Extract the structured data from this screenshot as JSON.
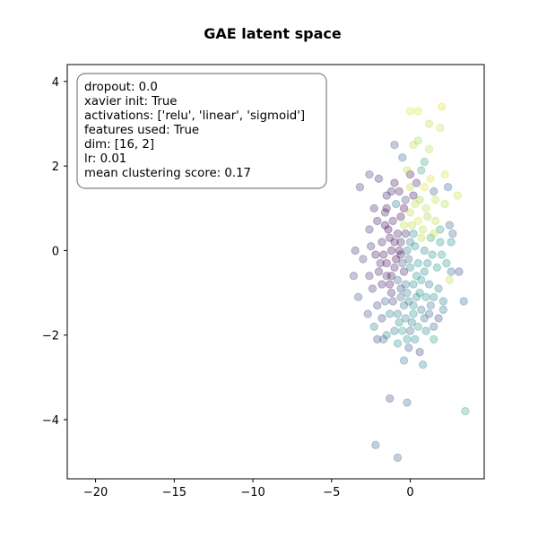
{
  "chart_data": {
    "type": "scatter",
    "title": "GAE latent space",
    "xlabel": "",
    "ylabel": "",
    "xlim": [
      -21.8,
      4.7
    ],
    "ylim": [
      -5.4,
      4.4
    ],
    "xticks": [
      -20,
      -15,
      -10,
      -5,
      0
    ],
    "yticks": [
      -4,
      -2,
      0,
      2,
      4
    ],
    "xtick_labels": [
      "−20",
      "−15",
      "−10",
      "−5",
      "0"
    ],
    "ytick_labels": [
      "−4",
      "−2",
      "0",
      "2",
      "4"
    ],
    "grid": false,
    "colormap": "viridis",
    "marker_alpha": 0.3,
    "annotation_box": {
      "lines": [
        "dropout: 0.0",
        "xavier init: True",
        "activations: ['relu', 'linear', 'sigmoid']",
        "features used: True",
        "dim: [16, 2]",
        "lr: 0.01",
        "mean clustering score: 0.17"
      ],
      "placement": "top-left"
    },
    "points": [
      {
        "x": 0.0,
        "y": 3.3,
        "c": 0.95
      },
      {
        "x": 0.5,
        "y": 3.3,
        "c": 0.95
      },
      {
        "x": 2.0,
        "y": 3.4,
        "c": 0.95
      },
      {
        "x": 1.2,
        "y": 3.0,
        "c": 0.9
      },
      {
        "x": 1.9,
        "y": 2.9,
        "c": 0.92
      },
      {
        "x": 0.2,
        "y": 2.5,
        "c": 0.9
      },
      {
        "x": 0.5,
        "y": 2.6,
        "c": 0.85
      },
      {
        "x": 0.9,
        "y": 2.1,
        "c": 0.6
      },
      {
        "x": 2.2,
        "y": 1.8,
        "c": 0.95
      },
      {
        "x": -0.5,
        "y": 2.2,
        "c": 0.3
      },
      {
        "x": -1.0,
        "y": 2.5,
        "c": 0.25
      },
      {
        "x": 1.2,
        "y": 2.4,
        "c": 0.9
      },
      {
        "x": -2.6,
        "y": 1.8,
        "c": 0.2
      },
      {
        "x": -3.2,
        "y": 1.5,
        "c": 0.15
      },
      {
        "x": -2.0,
        "y": 1.7,
        "c": 0.1
      },
      {
        "x": -1.5,
        "y": 1.3,
        "c": 0.1
      },
      {
        "x": -1.0,
        "y": 1.6,
        "c": 0.05
      },
      {
        "x": 0.0,
        "y": 1.8,
        "c": 0.05
      },
      {
        "x": 0.4,
        "y": 1.6,
        "c": 0.1
      },
      {
        "x": 0.9,
        "y": 1.5,
        "c": 0.95
      },
      {
        "x": 1.5,
        "y": 1.4,
        "c": 0.3
      },
      {
        "x": 2.4,
        "y": 1.5,
        "c": 0.3
      },
      {
        "x": 3.0,
        "y": 1.3,
        "c": 0.92
      },
      {
        "x": 2.2,
        "y": 1.1,
        "c": 0.9
      },
      {
        "x": 1.6,
        "y": 1.2,
        "c": 0.9
      },
      {
        "x": 0.6,
        "y": 1.2,
        "c": 0.85
      },
      {
        "x": -0.3,
        "y": 1.2,
        "c": 0.2
      },
      {
        "x": -0.9,
        "y": 1.1,
        "c": 0.4
      },
      {
        "x": -1.5,
        "y": 1.0,
        "c": 0.05
      },
      {
        "x": -2.3,
        "y": 1.0,
        "c": 0.1
      },
      {
        "x": -2.6,
        "y": 0.5,
        "c": 0.15
      },
      {
        "x": -2.1,
        "y": 0.7,
        "c": 0.05
      },
      {
        "x": -1.6,
        "y": 0.6,
        "c": 0.02
      },
      {
        "x": -1.1,
        "y": 0.7,
        "c": 0.1
      },
      {
        "x": -0.6,
        "y": 0.8,
        "c": 0.0
      },
      {
        "x": 0.0,
        "y": 0.9,
        "c": 0.9
      },
      {
        "x": 0.5,
        "y": 0.7,
        "c": 0.95
      },
      {
        "x": 1.1,
        "y": 0.8,
        "c": 0.85
      },
      {
        "x": 1.6,
        "y": 0.7,
        "c": 0.9
      },
      {
        "x": 2.5,
        "y": 0.6,
        "c": 0.3
      },
      {
        "x": 2.7,
        "y": 0.4,
        "c": 0.35
      },
      {
        "x": 2.6,
        "y": 0.2,
        "c": 0.5
      },
      {
        "x": 1.9,
        "y": 0.2,
        "c": 0.5
      },
      {
        "x": 1.3,
        "y": 0.3,
        "c": 0.6
      },
      {
        "x": 0.7,
        "y": 0.3,
        "c": 0.9
      },
      {
        "x": 0.2,
        "y": 0.4,
        "c": 0.45
      },
      {
        "x": -0.3,
        "y": 0.4,
        "c": 0.1
      },
      {
        "x": -0.8,
        "y": 0.4,
        "c": 0.1
      },
      {
        "x": -1.3,
        "y": 0.3,
        "c": 0.05
      },
      {
        "x": -1.8,
        "y": 0.2,
        "c": 0.1
      },
      {
        "x": -2.5,
        "y": 0.1,
        "c": 0.15
      },
      {
        "x": -3.5,
        "y": 0.0,
        "c": 0.15
      },
      {
        "x": -3.0,
        "y": -0.2,
        "c": 0.2
      },
      {
        "x": -2.2,
        "y": -0.1,
        "c": 0.05
      },
      {
        "x": -1.7,
        "y": -0.1,
        "c": 0.05
      },
      {
        "x": -1.2,
        "y": 0.0,
        "c": 0.02
      },
      {
        "x": -0.7,
        "y": 0.0,
        "c": 0.05
      },
      {
        "x": -0.2,
        "y": 0.0,
        "c": 0.4
      },
      {
        "x": 0.3,
        "y": 0.1,
        "c": 0.5
      },
      {
        "x": 0.9,
        "y": 0.0,
        "c": 0.45
      },
      {
        "x": 1.4,
        "y": -0.1,
        "c": 0.5
      },
      {
        "x": 2.0,
        "y": -0.1,
        "c": 0.55
      },
      {
        "x": 2.6,
        "y": -0.5,
        "c": 0.35
      },
      {
        "x": 3.1,
        "y": -0.5,
        "c": 0.2
      },
      {
        "x": 1.7,
        "y": -0.4,
        "c": 0.5
      },
      {
        "x": 1.1,
        "y": -0.3,
        "c": 0.45
      },
      {
        "x": 0.5,
        "y": -0.3,
        "c": 0.5
      },
      {
        "x": 0.0,
        "y": -0.4,
        "c": 0.45
      },
      {
        "x": -0.5,
        "y": -0.3,
        "c": 0.25
      },
      {
        "x": -1.0,
        "y": -0.4,
        "c": 0.1
      },
      {
        "x": -1.5,
        "y": -0.3,
        "c": 0.05
      },
      {
        "x": -2.0,
        "y": -0.5,
        "c": 0.1
      },
      {
        "x": -2.6,
        "y": -0.6,
        "c": 0.15
      },
      {
        "x": -3.6,
        "y": -0.6,
        "c": 0.2
      },
      {
        "x": -3.3,
        "y": -1.1,
        "c": 0.25
      },
      {
        "x": -2.4,
        "y": -0.9,
        "c": 0.15
      },
      {
        "x": -1.8,
        "y": -0.8,
        "c": 0.1
      },
      {
        "x": -1.3,
        "y": -0.8,
        "c": 0.05
      },
      {
        "x": -0.8,
        "y": -0.7,
        "c": 0.3
      },
      {
        "x": -0.3,
        "y": -0.8,
        "c": 0.4
      },
      {
        "x": 0.2,
        "y": -0.8,
        "c": 0.45
      },
      {
        "x": 0.7,
        "y": -0.7,
        "c": 0.5
      },
      {
        "x": 1.2,
        "y": -0.8,
        "c": 0.4
      },
      {
        "x": 1.8,
        "y": -0.9,
        "c": 0.45
      },
      {
        "x": 2.5,
        "y": -0.7,
        "c": 0.9
      },
      {
        "x": 2.1,
        "y": -1.2,
        "c": 0.4
      },
      {
        "x": 1.5,
        "y": -1.1,
        "c": 0.45
      },
      {
        "x": 1.0,
        "y": -1.1,
        "c": 0.5
      },
      {
        "x": 0.4,
        "y": -1.1,
        "c": 0.45
      },
      {
        "x": -0.1,
        "y": -1.2,
        "c": 0.4
      },
      {
        "x": -0.6,
        "y": -1.1,
        "c": 0.35
      },
      {
        "x": -1.1,
        "y": -1.2,
        "c": 0.2
      },
      {
        "x": -1.6,
        "y": -1.2,
        "c": 0.3
      },
      {
        "x": -2.1,
        "y": -1.3,
        "c": 0.2
      },
      {
        "x": -2.7,
        "y": -1.5,
        "c": 0.25
      },
      {
        "x": -2.3,
        "y": -1.8,
        "c": 0.45
      },
      {
        "x": -1.8,
        "y": -1.6,
        "c": 0.2
      },
      {
        "x": -1.3,
        "y": -1.5,
        "c": 0.45
      },
      {
        "x": -0.8,
        "y": -1.5,
        "c": 0.4
      },
      {
        "x": -0.3,
        "y": -1.6,
        "c": 0.45
      },
      {
        "x": 0.2,
        "y": -1.5,
        "c": 0.5
      },
      {
        "x": 0.7,
        "y": -1.4,
        "c": 0.4
      },
      {
        "x": 1.2,
        "y": -1.5,
        "c": 0.3
      },
      {
        "x": 1.8,
        "y": -1.6,
        "c": 0.2
      },
      {
        "x": 2.1,
        "y": -1.4,
        "c": 0.4
      },
      {
        "x": 3.4,
        "y": -1.2,
        "c": 0.35
      },
      {
        "x": 1.5,
        "y": -1.8,
        "c": 0.3
      },
      {
        "x": 1.0,
        "y": -1.9,
        "c": 0.45
      },
      {
        "x": 0.5,
        "y": -1.8,
        "c": 0.55
      },
      {
        "x": 0.0,
        "y": -1.9,
        "c": 0.3
      },
      {
        "x": -0.5,
        "y": -1.9,
        "c": 0.55
      },
      {
        "x": -1.0,
        "y": -1.9,
        "c": 0.4
      },
      {
        "x": -1.5,
        "y": -2.0,
        "c": 0.45
      },
      {
        "x": -2.1,
        "y": -2.1,
        "c": 0.2
      },
      {
        "x": -1.7,
        "y": -2.1,
        "c": 0.35
      },
      {
        "x": -0.8,
        "y": -2.2,
        "c": 0.5
      },
      {
        "x": -0.2,
        "y": -2.1,
        "c": 0.5
      },
      {
        "x": 0.3,
        "y": -2.1,
        "c": 0.45
      },
      {
        "x": 1.5,
        "y": -2.1,
        "c": 0.55
      },
      {
        "x": -0.1,
        "y": -2.3,
        "c": 0.25
      },
      {
        "x": 0.6,
        "y": -2.4,
        "c": 0.2
      },
      {
        "x": -0.4,
        "y": -2.6,
        "c": 0.4
      },
      {
        "x": 0.8,
        "y": -2.7,
        "c": 0.45
      },
      {
        "x": -1.3,
        "y": -3.5,
        "c": 0.2
      },
      {
        "x": -0.2,
        "y": -3.6,
        "c": 0.35
      },
      {
        "x": 3.5,
        "y": -3.8,
        "c": 0.6
      },
      {
        "x": -2.2,
        "y": -4.6,
        "c": 0.3
      },
      {
        "x": -0.8,
        "y": -4.9,
        "c": 0.3
      },
      {
        "x": 0.0,
        "y": 1.5,
        "c": 0.9
      },
      {
        "x": 0.3,
        "y": 1.1,
        "c": 0.9
      },
      {
        "x": -0.4,
        "y": 0.6,
        "c": 0.9
      },
      {
        "x": 0.8,
        "y": 0.5,
        "c": 0.9
      },
      {
        "x": -0.2,
        "y": 1.9,
        "c": 0.9
      },
      {
        "x": 0.7,
        "y": 1.9,
        "c": 0.6
      },
      {
        "x": 1.0,
        "y": 1.0,
        "c": 0.9
      },
      {
        "x": -0.6,
        "y": -0.1,
        "c": 0.05
      },
      {
        "x": -0.9,
        "y": -0.2,
        "c": 0.0
      },
      {
        "x": -1.4,
        "y": 0.5,
        "c": 0.0
      },
      {
        "x": -1.0,
        "y": 0.2,
        "c": 0.05
      },
      {
        "x": -0.6,
        "y": 0.2,
        "c": 0.1
      },
      {
        "x": -0.1,
        "y": -0.2,
        "c": 0.35
      },
      {
        "x": 0.4,
        "y": -0.6,
        "c": 0.5
      },
      {
        "x": 0.9,
        "y": -0.5,
        "c": 0.45
      },
      {
        "x": -0.4,
        "y": -0.5,
        "c": 0.1
      },
      {
        "x": -1.2,
        "y": -0.6,
        "c": 0.05
      },
      {
        "x": -0.6,
        "y": -0.9,
        "c": 0.2
      },
      {
        "x": -0.2,
        "y": -1.0,
        "c": 0.45
      },
      {
        "x": 0.6,
        "y": -1.0,
        "c": 0.5
      },
      {
        "x": 1.3,
        "y": -1.3,
        "c": 0.4
      },
      {
        "x": -0.4,
        "y": -1.3,
        "c": 0.4
      },
      {
        "x": 0.2,
        "y": -1.3,
        "c": 0.5
      },
      {
        "x": -1.2,
        "y": -1.0,
        "c": 0.1
      },
      {
        "x": -1.9,
        "y": -0.3,
        "c": 0.1
      },
      {
        "x": -1.6,
        "y": 0.9,
        "c": 0.1
      },
      {
        "x": -1.2,
        "y": 1.4,
        "c": 0.1
      },
      {
        "x": -0.7,
        "y": 1.4,
        "c": 0.05
      },
      {
        "x": 0.2,
        "y": 1.3,
        "c": 0.05
      },
      {
        "x": 1.3,
        "y": 1.7,
        "c": 0.95
      },
      {
        "x": -0.4,
        "y": 1.0,
        "c": 0.0
      },
      {
        "x": 0.1,
        "y": 0.6,
        "c": 0.9
      },
      {
        "x": 1.5,
        "y": 0.4,
        "c": 0.9
      },
      {
        "x": 1.9,
        "y": 0.5,
        "c": 0.55
      },
      {
        "x": 2.3,
        "y": -0.3,
        "c": 0.5
      },
      {
        "x": 0.0,
        "y": 0.2,
        "c": 0.4
      },
      {
        "x": -1.5,
        "y": -0.6,
        "c": 0.1
      },
      {
        "x": 0.1,
        "y": -1.7,
        "c": 0.4
      },
      {
        "x": -0.7,
        "y": -1.7,
        "c": 0.45
      },
      {
        "x": 0.9,
        "y": -1.6,
        "c": 0.35
      }
    ]
  }
}
